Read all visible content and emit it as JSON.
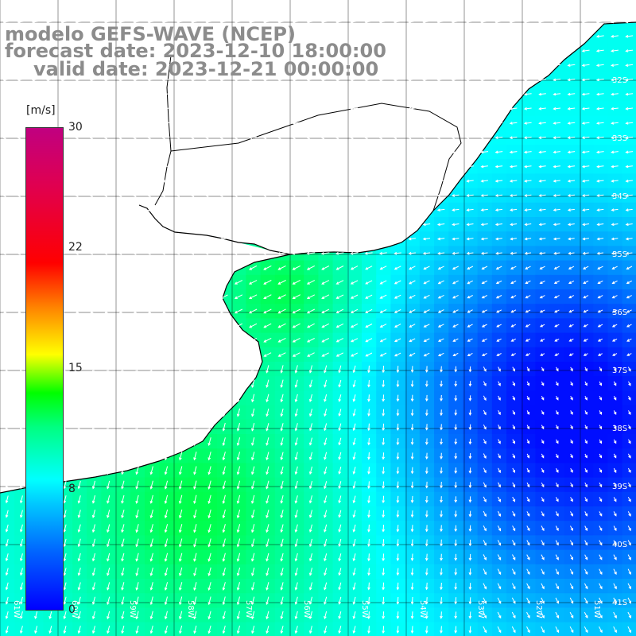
{
  "title": {
    "line1": "modelo GEFS-WAVE (NCEP)",
    "line2": "forecast date: 2023-12-10 18:00:00",
    "line3": "valid date: 2023-12-21 00:00:00"
  },
  "colorbar": {
    "unit": "[m/s]",
    "min": 0,
    "max": 30,
    "ticks": [
      "30",
      "22",
      "15",
      "8",
      "0"
    ],
    "colors": [
      "#0000ff",
      "#0064ff",
      "#00c8ff",
      "#00ffff",
      "#00ff80",
      "#00ff00",
      "#ffff00",
      "#ff8000",
      "#ff0000",
      "#c00080"
    ]
  },
  "map": {
    "lat_labels": [
      "32S",
      "33S",
      "34S",
      "35S",
      "36S",
      "37S",
      "38S",
      "39S",
      "40S",
      "41S"
    ],
    "lon_labels": [
      "61W",
      "60W",
      "59W",
      "58W",
      "57W",
      "56W",
      "55W",
      "54W",
      "53W",
      "52W",
      "51W"
    ],
    "lat_range": [
      -41.5,
      -31.0
    ],
    "lon_range": [
      -62.0,
      -51.0
    ],
    "land_color": "#ffffff",
    "grid_color": "#000000",
    "arrow_color": "#ffffff"
  }
}
